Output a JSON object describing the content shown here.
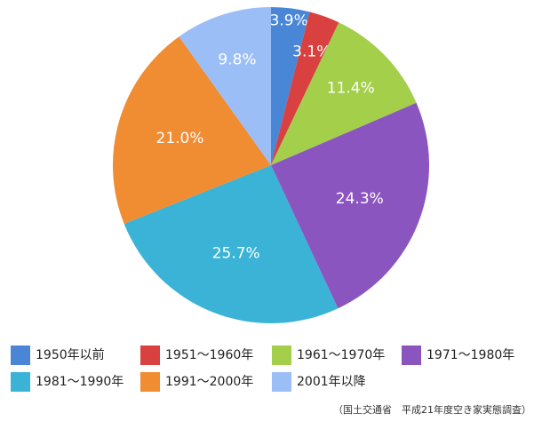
{
  "chart_data": {
    "type": "pie",
    "categories": [
      "1950年以前",
      "1951〜1960年",
      "1961〜1970年",
      "1971〜1980年",
      "1981〜1990年",
      "1991〜2000年",
      "2001年以降"
    ],
    "values": [
      3.9,
      3.1,
      11.4,
      24.3,
      25.7,
      21.0,
      9.8
    ],
    "value_labels": [
      "3.9%",
      "3.1%",
      "11.4%",
      "24.3%",
      "25.7%",
      "21.0%",
      "9.8%"
    ],
    "colors": [
      "#4a86d6",
      "#d8413f",
      "#a3cf4a",
      "#8b55bf",
      "#3ab3d6",
      "#f08c32",
      "#9bbef7"
    ],
    "source": "（国土交通省　平成21年度空き家実態調査）"
  }
}
